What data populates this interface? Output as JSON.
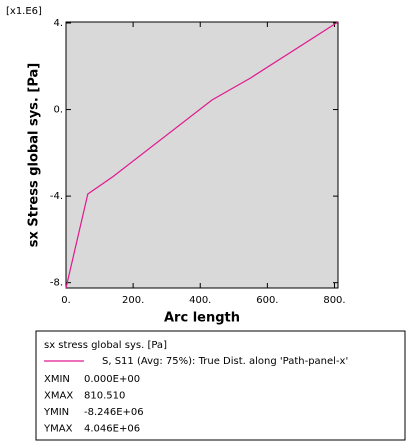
{
  "chart_data": {
    "type": "line",
    "xlabel": "Arc length",
    "ylabel": "sx  Stress global sys. [Pa]",
    "y_multiplier": "[x1.E6]",
    "x": [
      0,
      65,
      140,
      435,
      550,
      810.51
    ],
    "series": [
      {
        "name": "S, S11 (Avg: 75%): True Dist. along 'Path-panel-x'",
        "color": "#e0198f",
        "values": [
          -8.246,
          -3.9,
          -3.1,
          0.44,
          1.46,
          4.046
        ]
      }
    ],
    "xlim": [
      0,
      810.51
    ],
    "ylim": [
      -8.246,
      4.046
    ],
    "xticks": [
      {
        "value": 0,
        "label": "0."
      },
      {
        "value": 200,
        "label": "200."
      },
      {
        "value": 400,
        "label": "400."
      },
      {
        "value": 600,
        "label": "600."
      },
      {
        "value": 800,
        "label": "800."
      }
    ],
    "yticks": [
      {
        "value": -8,
        "label": "-8."
      },
      {
        "value": -4,
        "label": "-4."
      },
      {
        "value": 0,
        "label": "0."
      },
      {
        "value": 4,
        "label": "4."
      }
    ],
    "plot_background": "#d9d9d9",
    "legend_title": "sx stress  global sys. [Pa]",
    "stats": [
      {
        "name": "XMIN",
        "value": "0.000E+00"
      },
      {
        "name": "XMAX",
        "value": "810.510"
      },
      {
        "name": "YMIN",
        "value": "-8.246E+06"
      },
      {
        "name": "YMAX",
        "value": "4.046E+06"
      }
    ]
  }
}
